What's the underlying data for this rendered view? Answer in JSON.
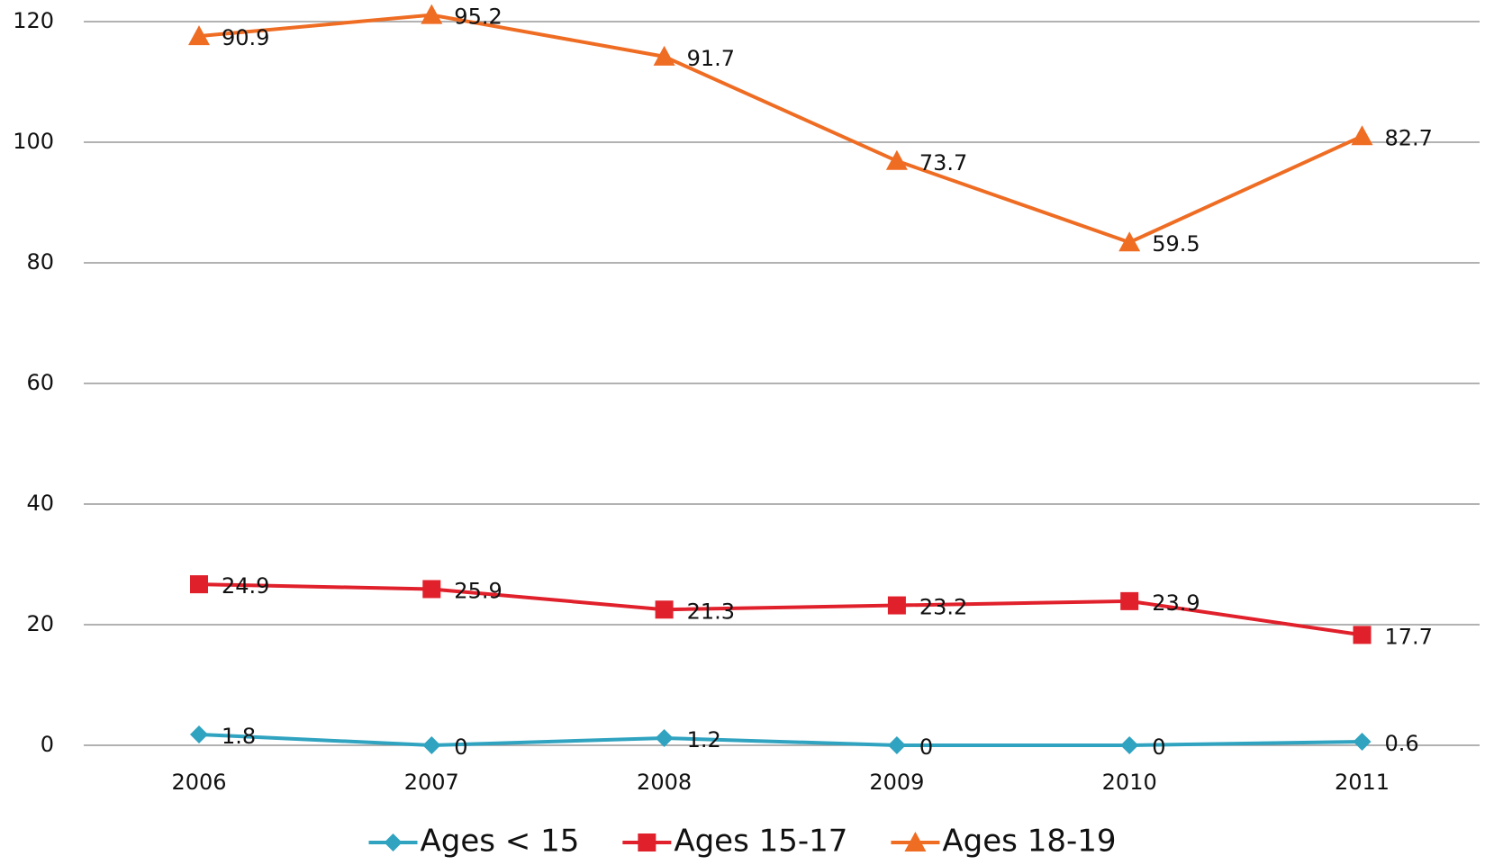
{
  "chart_data": {
    "type": "line",
    "stacked": true,
    "categories": [
      "2006",
      "2007",
      "2008",
      "2009",
      "2010",
      "2011"
    ],
    "series": [
      {
        "name": "Ages < 15",
        "color": "#2fa3c0",
        "marker": "diamond",
        "values": [
          1.8,
          0,
          1.2,
          0,
          0,
          0.6
        ]
      },
      {
        "name": "Ages 15-17",
        "color": "#e0202b",
        "marker": "square",
        "values": [
          24.9,
          25.9,
          21.3,
          23.2,
          23.9,
          17.7
        ]
      },
      {
        "name": "Ages 18-19",
        "color": "#ef6c23",
        "marker": "triangle",
        "values": [
          90.9,
          95.2,
          91.7,
          73.7,
          59.5,
          82.7
        ]
      }
    ],
    "ylim": [
      0,
      120
    ],
    "yticks": [
      0,
      20,
      40,
      60,
      80,
      100,
      120
    ],
    "grid": true,
    "legend": "bottom"
  }
}
